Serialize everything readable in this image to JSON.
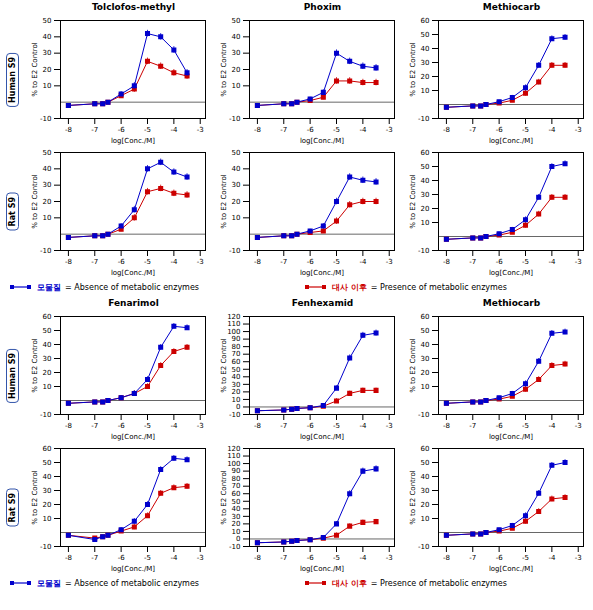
{
  "chart_data": [
    {
      "type": "line",
      "title": "Tolclofos-methyl",
      "annotations": [
        "Human S9"
      ],
      "xlabel": "log[Conc./M]",
      "ylabel": "% to E2 Control",
      "x": [
        -8,
        -7,
        -6.7,
        -6.5,
        -6,
        -5.5,
        -5,
        -4.5,
        -4,
        -3.5
      ],
      "xlim": [
        -8.3,
        -2.8
      ],
      "xticks": [
        -8,
        -7,
        -6,
        -5,
        -4,
        -3
      ],
      "ylim": [
        -10,
        50
      ],
      "yticks": [
        -10,
        10,
        20,
        30,
        40,
        50
      ],
      "series": [
        {
          "name": "모물질 = Absence of metabolic enzymes",
          "color": "#0000CC",
          "marker": "square",
          "values": [
            -2,
            -1,
            -1,
            0,
            5,
            10,
            42,
            40,
            32,
            18
          ],
          "errors": [
            1,
            1,
            1,
            1,
            1.5,
            2,
            2,
            2,
            2,
            2
          ]
        },
        {
          "name": "대사 이후 = Presence of metabolic enzymes",
          "color": "#CC0000",
          "marker": "square",
          "values": [
            -2,
            -1,
            -1,
            0,
            4,
            8,
            25,
            22,
            18,
            16
          ],
          "errors": [
            1,
            1,
            1,
            1,
            1.5,
            2,
            2,
            2,
            2,
            2
          ]
        }
      ]
    },
    {
      "type": "line",
      "title": "Phoxim",
      "xlabel": "log[Conc./M]",
      "ylabel": "% to E2 Control",
      "x": [
        -8,
        -7,
        -6.7,
        -6.5,
        -6,
        -5.5,
        -5,
        -4.5,
        -4,
        -3.5
      ],
      "xlim": [
        -8.3,
        -2.8
      ],
      "xticks": [
        -8,
        -7,
        -6,
        -5,
        -4,
        -3
      ],
      "ylim": [
        -10,
        50
      ],
      "yticks": [
        -10,
        10,
        20,
        30,
        40,
        50
      ],
      "series": [
        {
          "name": "모물질 = Absence of metabolic enzymes",
          "color": "#0000CC",
          "marker": "square",
          "values": [
            -2,
            -1,
            -1,
            0,
            2,
            6,
            30,
            25,
            22,
            21
          ],
          "errors": [
            1,
            1,
            1,
            1,
            1,
            1.5,
            2,
            2,
            2,
            2
          ]
        },
        {
          "name": "대사 이후 = Presence of metabolic enzymes",
          "color": "#CC0000",
          "marker": "square",
          "values": [
            -2,
            -1,
            -1,
            0,
            1,
            3,
            13,
            13,
            12,
            12
          ],
          "errors": [
            1,
            1,
            1,
            1,
            1,
            1.5,
            2,
            2,
            2,
            2
          ]
        }
      ]
    },
    {
      "type": "line",
      "title": "Methiocarb",
      "xlabel": "log[Conc./M]",
      "ylabel": "% to E2 Control",
      "x": [
        -8,
        -7,
        -6.7,
        -6.5,
        -6,
        -5.5,
        -5,
        -4.5,
        -4,
        -3.5
      ],
      "xlim": [
        -8.3,
        -2.8
      ],
      "xticks": [
        -8,
        -7,
        -6,
        -5,
        -4,
        -3
      ],
      "ylim": [
        -10,
        60
      ],
      "yticks": [
        -10,
        10,
        20,
        30,
        40,
        50,
        60
      ],
      "series": [
        {
          "name": "모물질 = Absence of metabolic enzymes",
          "color": "#0000CC",
          "marker": "square",
          "values": [
            -2,
            -1,
            -1,
            0,
            2,
            5,
            12,
            28,
            47,
            48
          ],
          "errors": [
            1,
            1,
            1,
            1,
            1,
            1.5,
            2,
            2,
            2,
            2
          ]
        },
        {
          "name": "대사 이후 = Presence of metabolic enzymes",
          "color": "#CC0000",
          "marker": "square",
          "values": [
            -2,
            -1,
            -1,
            0,
            1,
            3,
            8,
            16,
            28,
            28
          ],
          "errors": [
            1,
            1,
            1,
            1,
            1,
            1.5,
            2,
            2,
            2,
            2
          ]
        }
      ]
    },
    {
      "type": "line",
      "annotations": [
        "Rat S9"
      ],
      "xlabel": "log[Conc./M]",
      "ylabel": "% to E2 Control",
      "x": [
        -8,
        -7,
        -6.7,
        -6.5,
        -6,
        -5.5,
        -5,
        -4.5,
        -4,
        -3.5
      ],
      "xlim": [
        -8.3,
        -2.8
      ],
      "xticks": [
        -8,
        -7,
        -6,
        -5,
        -4,
        -3
      ],
      "ylim": [
        -10,
        50
      ],
      "yticks": [
        -10,
        10,
        20,
        30,
        40,
        50
      ],
      "series": [
        {
          "name": "모물질 = Absence of metabolic enzymes",
          "color": "#0000CC",
          "marker": "square",
          "values": [
            -2,
            -1,
            -1,
            0,
            5,
            15,
            40,
            44,
            38,
            35
          ],
          "errors": [
            1,
            1,
            1,
            1,
            1.5,
            2,
            2,
            2,
            2,
            2
          ]
        },
        {
          "name": "대사 이후 = Presence of metabolic enzymes",
          "color": "#CC0000",
          "marker": "square",
          "values": [
            -2,
            -1,
            -1,
            0,
            3,
            10,
            26,
            28,
            25,
            24
          ],
          "errors": [
            1,
            1,
            1,
            1,
            1.5,
            2,
            2,
            2,
            2,
            2
          ]
        }
      ]
    },
    {
      "type": "line",
      "xlabel": "log[Conc./M]",
      "ylabel": "% to E2 Control",
      "x": [
        -8,
        -7,
        -6.7,
        -6.5,
        -6,
        -5.5,
        -5,
        -4.5,
        -4,
        -3.5
      ],
      "xlim": [
        -8.3,
        -2.8
      ],
      "xticks": [
        -8,
        -7,
        -6,
        -5,
        -4,
        -3
      ],
      "ylim": [
        -10,
        50
      ],
      "yticks": [
        -10,
        10,
        20,
        30,
        40,
        50
      ],
      "series": [
        {
          "name": "모물질 = Absence of metabolic enzymes",
          "color": "#0000CC",
          "marker": "square",
          "values": [
            -2,
            -1,
            -1,
            0,
            2,
            5,
            20,
            35,
            33,
            32
          ],
          "errors": [
            1,
            1,
            1,
            1,
            1,
            1.5,
            2,
            2,
            2,
            2
          ]
        },
        {
          "name": "대사 이후 = Presence of metabolic enzymes",
          "color": "#CC0000",
          "marker": "square",
          "values": [
            -2,
            -1,
            -1,
            0,
            1,
            2,
            8,
            18,
            20,
            20
          ],
          "errors": [
            1,
            1,
            1,
            1,
            1,
            1.5,
            2,
            2,
            2,
            2
          ]
        }
      ]
    },
    {
      "type": "line",
      "xlabel": "log[Conc./M]",
      "ylabel": "% to E2 Control",
      "x": [
        -8,
        -7,
        -6.7,
        -6.5,
        -6,
        -5.5,
        -5,
        -4.5,
        -4,
        -3.5
      ],
      "xlim": [
        -8.3,
        -2.8
      ],
      "xticks": [
        -8,
        -7,
        -6,
        -5,
        -4,
        -3
      ],
      "ylim": [
        -10,
        60
      ],
      "yticks": [
        -10,
        10,
        20,
        30,
        40,
        50,
        60
      ],
      "series": [
        {
          "name": "모물질 = Absence of metabolic enzymes",
          "color": "#0000CC",
          "marker": "square",
          "values": [
            -2,
            -1,
            -1,
            0,
            2,
            5,
            12,
            28,
            50,
            52
          ],
          "errors": [
            1,
            1,
            1,
            1,
            1,
            1.5,
            2,
            2,
            2,
            2
          ]
        },
        {
          "name": "대사 이후 = Presence of metabolic enzymes",
          "color": "#CC0000",
          "marker": "square",
          "values": [
            -2,
            -1,
            -1,
            0,
            1,
            3,
            8,
            16,
            28,
            28
          ],
          "errors": [
            1,
            1,
            1,
            1,
            1,
            1.5,
            2,
            2,
            2,
            2
          ]
        }
      ]
    },
    {
      "type": "line",
      "title": "Fenarimol",
      "annotations": [
        "Human S9"
      ],
      "xlabel": "log[Conc./M]",
      "ylabel": "% to E2 Control",
      "x": [
        -8,
        -7,
        -6.7,
        -6.5,
        -6,
        -5.5,
        -5,
        -4.5,
        -4,
        -3.5
      ],
      "xlim": [
        -8.3,
        -2.8
      ],
      "xticks": [
        -8,
        -7,
        -6,
        -5,
        -4,
        -3
      ],
      "ylim": [
        -10,
        60
      ],
      "yticks": [
        -10,
        10,
        20,
        30,
        40,
        50,
        60
      ],
      "series": [
        {
          "name": "모물질 = Absence of metabolic enzymes",
          "color": "#0000CC",
          "marker": "square",
          "values": [
            -2,
            -1,
            -1,
            0,
            2,
            5,
            15,
            38,
            53,
            52
          ],
          "errors": [
            1,
            1,
            1,
            1,
            1.5,
            2,
            2,
            2,
            2,
            2
          ]
        },
        {
          "name": "대사 이후 = Presence of metabolic enzymes",
          "color": "#CC0000",
          "marker": "square",
          "values": [
            -2,
            -1,
            -1,
            0,
            2,
            5,
            10,
            25,
            35,
            38
          ],
          "errors": [
            1,
            1,
            1,
            1,
            1.5,
            2,
            2,
            2,
            2,
            2
          ]
        }
      ]
    },
    {
      "type": "line",
      "title": "Fenhexamid",
      "xlabel": "log[Conc./M]",
      "ylabel": "% to E2 Control",
      "x": [
        -8,
        -7,
        -6.7,
        -6.5,
        -6,
        -5.5,
        -5,
        -4.5,
        -4,
        -3.5
      ],
      "xlim": [
        -8.3,
        -2.8
      ],
      "xticks": [
        -8,
        -7,
        -6,
        -5,
        -4,
        -3
      ],
      "ylim": [
        -10,
        120
      ],
      "yticks": [
        -10,
        0,
        10,
        20,
        30,
        40,
        50,
        60,
        70,
        80,
        90,
        100,
        110,
        120
      ],
      "series": [
        {
          "name": "모물질 = Absence of metabolic enzymes",
          "color": "#0000CC",
          "marker": "square",
          "values": [
            -5,
            -4,
            -3,
            -2,
            -1,
            2,
            25,
            65,
            95,
            98
          ],
          "errors": [
            1,
            1,
            1,
            1,
            1,
            1.5,
            3,
            4,
            4,
            4
          ]
        },
        {
          "name": "대사 이후 = Presence of metabolic enzymes",
          "color": "#CC0000",
          "marker": "square",
          "values": [
            -5,
            -4,
            -3,
            -2,
            -1,
            1,
            8,
            18,
            22,
            22
          ],
          "errors": [
            1,
            1,
            1,
            1,
            1,
            1.5,
            3,
            3,
            3,
            3
          ]
        }
      ]
    },
    {
      "type": "line",
      "title": "Methiocarb",
      "xlabel": "log[Conc./M]",
      "ylabel": "% to E2 Control",
      "x": [
        -8,
        -7,
        -6.7,
        -6.5,
        -6,
        -5.5,
        -5,
        -4.5,
        -4,
        -3.5
      ],
      "xlim": [
        -8.3,
        -2.8
      ],
      "xticks": [
        -8,
        -7,
        -6,
        -5,
        -4,
        -3
      ],
      "ylim": [
        -10,
        60
      ],
      "yticks": [
        -10,
        10,
        20,
        30,
        40,
        50,
        60
      ],
      "series": [
        {
          "name": "모물질 = Absence of metabolic enzymes",
          "color": "#0000CC",
          "marker": "square",
          "values": [
            -2,
            -1,
            -1,
            0,
            2,
            5,
            12,
            28,
            48,
            49
          ],
          "errors": [
            1,
            1,
            1,
            1,
            1,
            1.5,
            2,
            2,
            2,
            2
          ]
        },
        {
          "name": "대사 이후 = Presence of metabolic enzymes",
          "color": "#CC0000",
          "marker": "square",
          "values": [
            -2,
            -1,
            -1,
            0,
            1,
            3,
            8,
            15,
            25,
            26
          ],
          "errors": [
            1,
            1,
            1,
            1,
            1,
            1.5,
            2,
            2,
            2,
            2
          ]
        }
      ]
    },
    {
      "type": "line",
      "annotations": [
        "Rat S9"
      ],
      "xlabel": "log[Conc./M]",
      "ylabel": "% to E2 Control",
      "x": [
        -8,
        -7,
        -6.7,
        -6.5,
        -6,
        -5.5,
        -5,
        -4.5,
        -4,
        -3.5
      ],
      "xlim": [
        -8.3,
        -2.8
      ],
      "xticks": [
        -8,
        -7,
        -6,
        -5,
        -4,
        -3
      ],
      "ylim": [
        -10,
        60
      ],
      "yticks": [
        -10,
        10,
        20,
        30,
        40,
        50,
        60
      ],
      "series": [
        {
          "name": "모물질 = Absence of metabolic enzymes",
          "color": "#0000CC",
          "marker": "square",
          "values": [
            -2,
            -5,
            -3,
            -2,
            2,
            8,
            20,
            45,
            53,
            52
          ],
          "errors": [
            1,
            1,
            1,
            1,
            1.5,
            2,
            2,
            2,
            2,
            2
          ]
        },
        {
          "name": "대사 이후 = Presence of metabolic enzymes",
          "color": "#CC0000",
          "marker": "square",
          "values": [
            -2,
            -4,
            -3,
            -2,
            1,
            4,
            12,
            28,
            32,
            33
          ],
          "errors": [
            1,
            1,
            1,
            1,
            1.5,
            2,
            2,
            2,
            2,
            2
          ]
        }
      ]
    },
    {
      "type": "line",
      "xlabel": "log[Conc./M]",
      "ylabel": "% to E2 Control",
      "x": [
        -8,
        -7,
        -6.7,
        -6.5,
        -6,
        -5.5,
        -5,
        -4.5,
        -4,
        -3.5
      ],
      "xlim": [
        -8.3,
        -2.8
      ],
      "xticks": [
        -8,
        -7,
        -6,
        -5,
        -4,
        -3
      ],
      "ylim": [
        -10,
        120
      ],
      "yticks": [
        -10,
        0,
        10,
        20,
        30,
        40,
        50,
        60,
        70,
        80,
        90,
        100,
        110,
        120
      ],
      "series": [
        {
          "name": "모물질 = Absence of metabolic enzymes",
          "color": "#0000CC",
          "marker": "square",
          "values": [
            -5,
            -4,
            -3,
            -2,
            -1,
            2,
            20,
            60,
            90,
            93
          ],
          "errors": [
            1,
            1,
            1,
            1,
            1,
            1.5,
            3,
            4,
            4,
            4
          ]
        },
        {
          "name": "대사 이후 = Presence of metabolic enzymes",
          "color": "#CC0000",
          "marker": "square",
          "values": [
            -5,
            -4,
            -3,
            -2,
            -1,
            1,
            5,
            17,
            22,
            23
          ],
          "errors": [
            1,
            1,
            1,
            1,
            1,
            1.5,
            3,
            3,
            3,
            3
          ]
        }
      ]
    },
    {
      "type": "line",
      "xlabel": "log[Conc./M]",
      "ylabel": "% to E2 Control",
      "x": [
        -8,
        -7,
        -6.7,
        -6.5,
        -6,
        -5.5,
        -5,
        -4.5,
        -4,
        -3.5
      ],
      "xlim": [
        -8.3,
        -2.8
      ],
      "xticks": [
        -8,
        -7,
        -6,
        -5,
        -4,
        -3
      ],
      "ylim": [
        -10,
        60
      ],
      "yticks": [
        -10,
        10,
        20,
        30,
        40,
        50,
        60
      ],
      "series": [
        {
          "name": "모물질 = Absence of metabolic enzymes",
          "color": "#0000CC",
          "marker": "square",
          "values": [
            -2,
            -1,
            -1,
            0,
            2,
            5,
            12,
            28,
            48,
            50
          ],
          "errors": [
            1,
            1,
            1,
            1,
            1,
            1.5,
            2,
            2,
            2,
            2
          ]
        },
        {
          "name": "대사 이후 = Presence of metabolic enzymes",
          "color": "#CC0000",
          "marker": "square",
          "values": [
            -2,
            -1,
            -1,
            0,
            1,
            3,
            8,
            15,
            24,
            25
          ],
          "errors": [
            1,
            1,
            1,
            1,
            1,
            1.5,
            2,
            2,
            2,
            2
          ]
        }
      ]
    }
  ]
}
